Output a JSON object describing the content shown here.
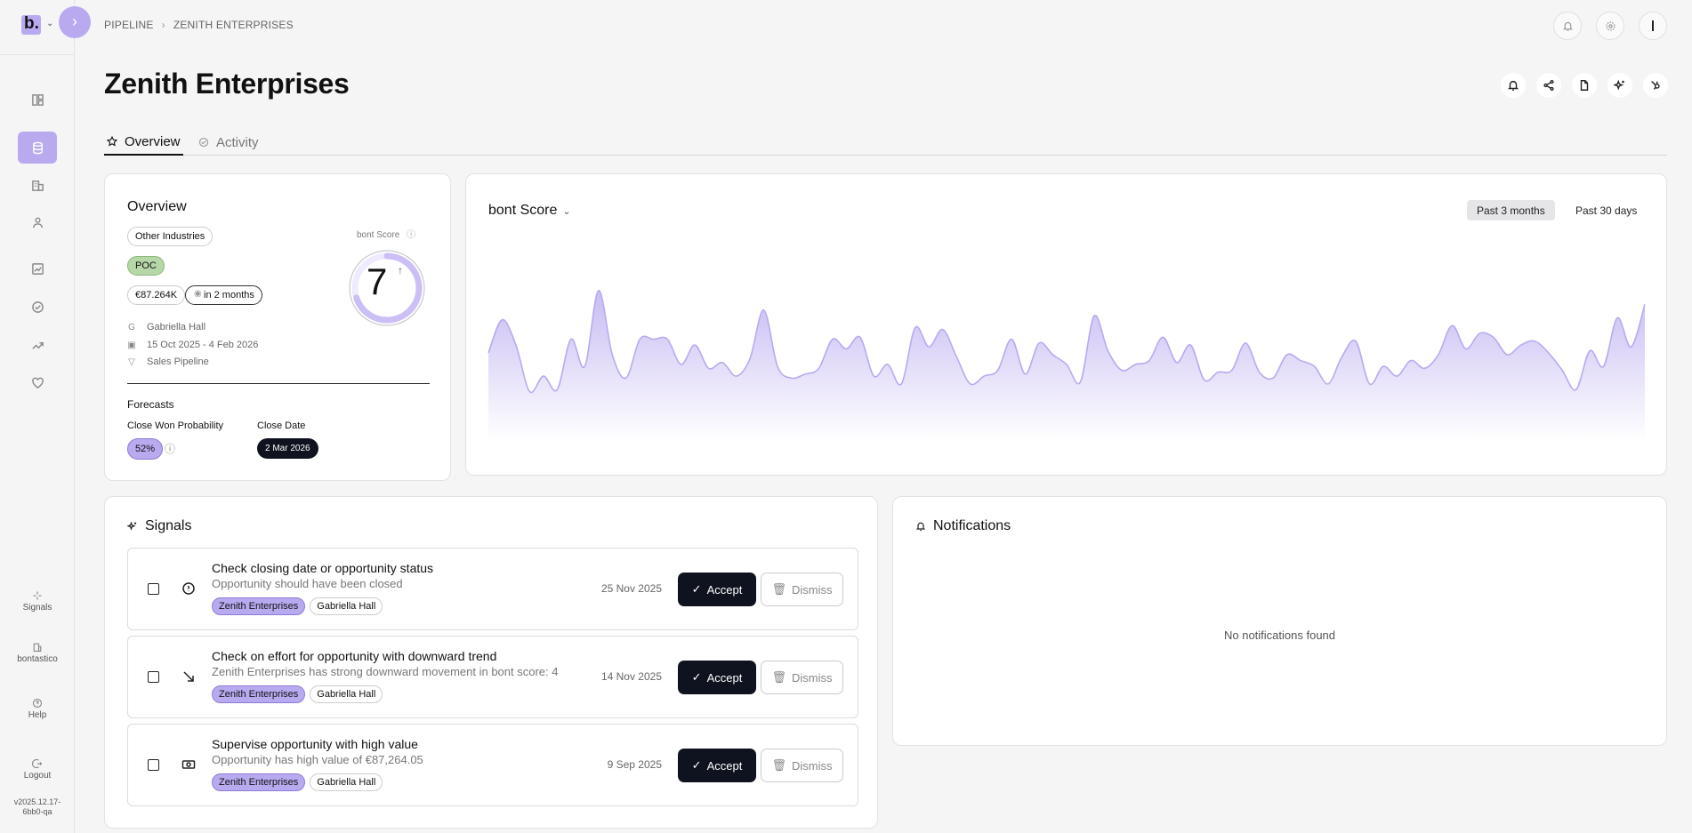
{
  "breadcrumb": {
    "root": "PIPELINE",
    "current": "ZENITH ENTERPRISES"
  },
  "page": {
    "title": "Zenith Enterprises"
  },
  "tabs": [
    {
      "label": "Overview",
      "active": true
    },
    {
      "label": "Activity",
      "active": false
    }
  ],
  "sidebar": {
    "logo": "b.",
    "bottom": [
      {
        "label": "Signals",
        "icon": "sparkle-icon"
      },
      {
        "label": "bontastico",
        "icon": "building-icon"
      },
      {
        "label": "Help",
        "icon": "help-icon"
      },
      {
        "label": "Logout",
        "icon": "logout-icon"
      }
    ],
    "version_line1": "v2025.12.17-",
    "version_line2": "6bb0-qa"
  },
  "overview": {
    "heading": "Overview",
    "industry": "Other Industries",
    "stage": "POC",
    "value": "€87.264K",
    "close_in": "in 2 months",
    "owner_initial": "G",
    "owner": "Gabriella Hall",
    "date_range": "15 Oct 2025 - 4 Feb 2026",
    "pipeline": "Sales Pipeline",
    "score_label": "bont Score",
    "score": "7",
    "score_fraction": 0.7,
    "forecasts_heading": "Forecasts",
    "close_won_label": "Close Won Probability",
    "close_won_value": "52%",
    "close_date_label": "Close Date",
    "close_date_value": "2 Mar 2026"
  },
  "score_chart": {
    "title": "bont Score",
    "range_options": [
      "Past 3 months",
      "Past 30 days"
    ],
    "selected_range": "Past 3 months"
  },
  "chart_data": {
    "type": "area",
    "title": "bont Score",
    "series": [
      {
        "values": [
          5.8,
          7.5,
          6.2,
          3.8,
          4.6,
          3.9,
          6.5,
          5.1,
          9,
          5.7,
          4.5,
          6.5,
          6.5,
          6.5,
          5.2,
          6.2,
          5,
          5.3,
          4.6,
          5.5,
          8,
          5.1,
          4.5,
          4.7,
          5,
          6.5,
          6,
          6.6,
          4.6,
          5.2,
          4.2,
          7.1,
          6.1,
          7,
          5.6,
          4.2,
          4.6,
          4.9,
          6.5,
          4.7,
          6.3,
          5.7,
          5.2,
          4.3,
          7.7,
          5.9,
          4.9,
          5.2,
          5.4,
          6.6,
          5.3,
          6.2,
          4.4,
          4.8,
          4.9,
          6.3,
          4.8,
          4.5,
          5.7,
          5.4,
          5.1,
          4.2,
          5.6,
          6.4,
          4.2,
          5.1,
          4.6,
          5.4,
          5,
          5.7,
          7.2,
          6,
          6.8,
          6.6,
          5.7,
          6.2,
          6.4,
          5.8,
          4.9,
          3.9,
          5.9,
          5.1,
          7.6,
          6.1,
          8.3
        ],
        "color": "#b9aaf0"
      }
    ]
  },
  "signals": {
    "heading": "Signals",
    "accept_label": "Accept",
    "dismiss_label": "Dismiss",
    "items": [
      {
        "title": "Check closing date or opportunity status",
        "subtitle": "Opportunity should have been closed",
        "date": "25 Nov 2025",
        "tags": [
          "Zenith Enterprises",
          "Gabriella Hall"
        ],
        "icon": "alert-circle-icon"
      },
      {
        "title": "Check on effort for opportunity with downward trend",
        "subtitle": "Zenith Enterprises has strong downward movement in bont score: 4",
        "date": "14 Nov 2025",
        "tags": [
          "Zenith Enterprises",
          "Gabriella Hall"
        ],
        "icon": "trend-down-icon"
      },
      {
        "title": "Supervise opportunity with high value",
        "subtitle": "Opportunity has high value of €87,264.05",
        "date": "9 Sep 2025",
        "tags": [
          "Zenith Enterprises",
          "Gabriella Hall"
        ],
        "icon": "cash-icon"
      }
    ]
  },
  "notifications": {
    "heading": "Notifications",
    "empty_text": "No notifications found"
  }
}
